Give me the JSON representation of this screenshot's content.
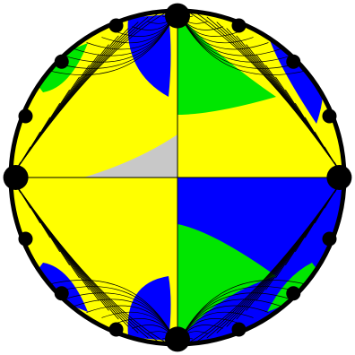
{
  "figure": {
    "kind": "hyperbolic-tiling-poincare-disk",
    "colors": {
      "yellow": "#ffff00",
      "green": "#00e600",
      "blue": "#0000ff",
      "gray": "#c8c8c8",
      "line": "#000000",
      "boundary": "#000000",
      "background": "#ffffff"
    }
  }
}
